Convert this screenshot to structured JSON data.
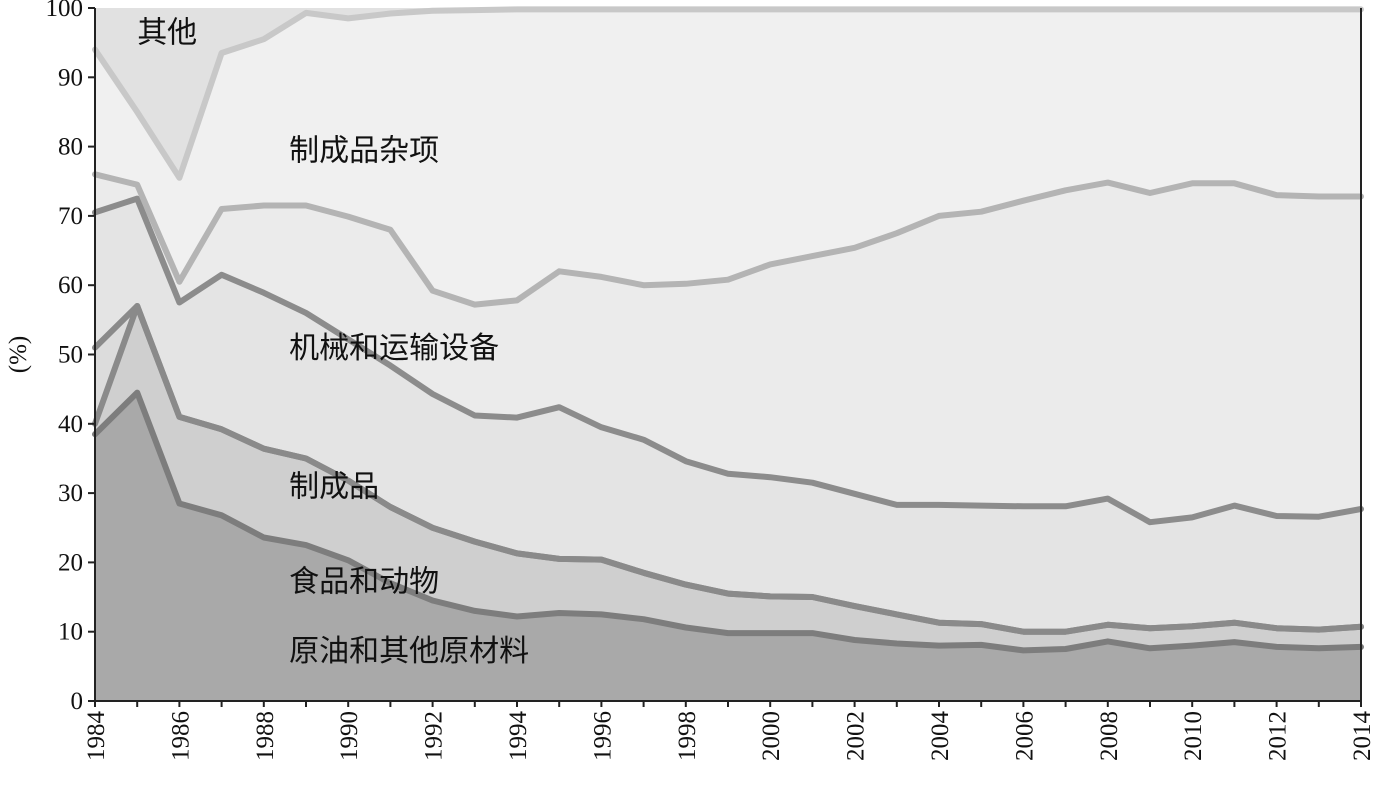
{
  "chart_data": {
    "type": "area",
    "stacked": true,
    "title": "",
    "xlabel": "",
    "ylabel": "(%)",
    "ylim": [
      0,
      100
    ],
    "xlim": [
      1984,
      2014
    ],
    "yticks": [
      "0",
      "10",
      "20",
      "30",
      "40",
      "50",
      "60",
      "70",
      "80",
      "90",
      "100"
    ],
    "xticks": [
      "1984",
      "1986",
      "1988",
      "1990",
      "1992",
      "1994",
      "1996",
      "1998",
      "2000",
      "2002",
      "2004",
      "2006",
      "2008",
      "2010",
      "2012",
      "2014"
    ],
    "x": [
      1984,
      1985,
      1986,
      1987,
      1988,
      1989,
      1990,
      1991,
      1992,
      1993,
      1994,
      1995,
      1996,
      1997,
      1998,
      1999,
      2000,
      2001,
      2002,
      2003,
      2004,
      2005,
      2006,
      2007,
      2008,
      2009,
      2010,
      2011,
      2012,
      2013,
      2014
    ],
    "series": [
      {
        "name": "原油和其他原材料",
        "cumulative": [
          38.5,
          44.5,
          28.5,
          26.8,
          23.6,
          22.5,
          20.3,
          17.0,
          14.5,
          13.0,
          12.2,
          12.7,
          12.5,
          11.8,
          10.6,
          9.8,
          9.8,
          9.8,
          8.8,
          8.3,
          8.0,
          8.1,
          7.3,
          7.5,
          8.6,
          7.6,
          8.0,
          8.5,
          7.8,
          7.6,
          7.8
        ],
        "fill": "#a9a9a9",
        "line": "#7d7d7d"
      },
      {
        "name": "食品和动物",
        "cumulative": [
          40.0,
          57.0,
          41.0,
          39.2,
          36.4,
          35.0,
          31.8,
          28.0,
          25.0,
          23.0,
          21.3,
          20.5,
          20.4,
          18.5,
          16.8,
          15.5,
          15.1,
          15.0,
          13.7,
          12.5,
          11.3,
          11.1,
          10.0,
          10.0,
          11.0,
          10.5,
          10.8,
          11.3,
          10.5,
          10.3,
          10.7
        ],
        "fill": "#cfcfcf",
        "line": "#8a8a8a"
      },
      {
        "name": "制成品",
        "cumulative": [
          51.0,
          57.0,
          41.0,
          39.2,
          36.4,
          35.0,
          31.8,
          28.0,
          25.0,
          23.0,
          21.3,
          20.5,
          20.4,
          18.5,
          16.8,
          15.5,
          15.1,
          15.0,
          13.7,
          12.5,
          11.3,
          11.1,
          10.0,
          10.0,
          11.0,
          10.5,
          10.8,
          11.3,
          10.5,
          10.3,
          10.7
        ],
        "fill": "#dcdcdc",
        "line": "#8a8a8a"
      },
      {
        "name": "机械和运输设备",
        "cumulative": [
          70.5,
          72.5,
          57.5,
          61.5,
          58.9,
          56.0,
          52.2,
          48.4,
          44.3,
          41.2,
          40.9,
          42.4,
          39.5,
          37.7,
          34.6,
          32.8,
          32.3,
          31.5,
          29.9,
          28.3,
          28.3,
          28.2,
          28.1,
          28.1,
          29.2,
          25.8,
          26.5,
          28.2,
          26.7,
          26.6,
          27.7
        ],
        "fill": "#e4e4e4",
        "line": "#8c8c8c"
      },
      {
        "name": "制成品杂项",
        "cumulative": [
          76.0,
          74.5,
          60.5,
          71.0,
          71.5,
          71.5,
          69.9,
          68.0,
          59.2,
          57.2,
          57.8,
          62.0,
          61.2,
          60.0,
          60.2,
          60.8,
          63.0,
          64.2,
          65.4,
          67.5,
          70.0,
          70.6,
          72.2,
          73.7,
          74.8,
          73.3,
          74.7,
          74.7,
          73.0,
          72.8,
          72.8
        ],
        "fill": "#ebebeb",
        "line": "#b4b4b4"
      },
      {
        "name": "其他",
        "cumulative": [
          94.0,
          85.0,
          75.5,
          93.5,
          95.5,
          99.3,
          98.5,
          99.2,
          99.6,
          99.7,
          99.8,
          99.8,
          99.8,
          99.8,
          99.8,
          99.8,
          99.8,
          99.8,
          99.8,
          99.8,
          99.8,
          99.8,
          99.8,
          99.8,
          99.8,
          99.8,
          99.8,
          99.8,
          99.8,
          99.8,
          99.8
        ],
        "fill": "#f0f0f0",
        "line": "#c8c8c8"
      }
    ],
    "top_fill": "#e1e1e1",
    "labels": [
      {
        "text": "其他",
        "x": 1985.0,
        "y": 95.0
      },
      {
        "text": "制成品杂项",
        "x": 1988.6,
        "y": 78.0
      },
      {
        "text": "机械和运输设备",
        "x": 1988.6,
        "y": 49.5
      },
      {
        "text": "制成品",
        "x": 1988.6,
        "y": 29.5
      },
      {
        "text": "食品和动物",
        "x": 1988.6,
        "y": 15.8
      },
      {
        "text": "原油和其他原材料",
        "x": 1988.6,
        "y": 5.8
      }
    ]
  }
}
